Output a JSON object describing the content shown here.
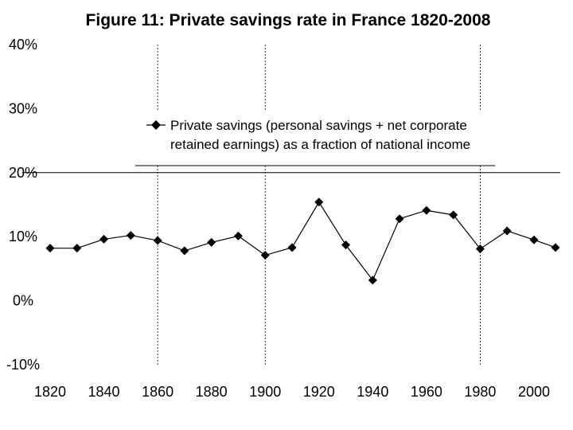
{
  "chart_data": {
    "type": "line",
    "title": "Figure 11: Private savings rate in France 1820-2008",
    "xlabel": "",
    "ylabel": "",
    "x": [
      1820,
      1830,
      1840,
      1850,
      1860,
      1870,
      1880,
      1890,
      1900,
      1910,
      1920,
      1930,
      1940,
      1950,
      1960,
      1970,
      1980,
      1990,
      2000,
      2008
    ],
    "series": [
      {
        "name": "Private savings (personal savings + net corporate retained earnings) as a fraction of national income",
        "values": [
          8.2,
          8.2,
          9.6,
          10.2,
          9.4,
          7.8,
          9.1,
          10.1,
          7.1,
          8.3,
          15.4,
          8.7,
          3.2,
          12.8,
          14.1,
          13.4,
          8.1,
          10.9,
          9.5,
          8.3
        ],
        "marker": "diamond",
        "color": "#000000"
      }
    ],
    "ylim": [
      -10,
      40
    ],
    "xlim": [
      1820,
      2008
    ],
    "yticks": [
      "40%",
      "30%",
      "20%",
      "10%",
      "0%",
      "-10%"
    ],
    "ytick_values": [
      40,
      30,
      20,
      10,
      0,
      -10
    ],
    "xticks": [
      "1820",
      "1840",
      "1860",
      "1880",
      "1900",
      "1920",
      "1940",
      "1960",
      "1980",
      "2000"
    ],
    "xtick_values": [
      1820,
      1840,
      1860,
      1880,
      1900,
      1920,
      1940,
      1960,
      1980,
      2000
    ],
    "reference_vlines": [
      1860,
      1900,
      1980
    ],
    "reference_hline": 20,
    "legend_lines": [
      "Private savings (personal savings + net corporate",
      "retained earnings) as a fraction of national income"
    ],
    "legend_position": "top-center",
    "grid": false
  }
}
